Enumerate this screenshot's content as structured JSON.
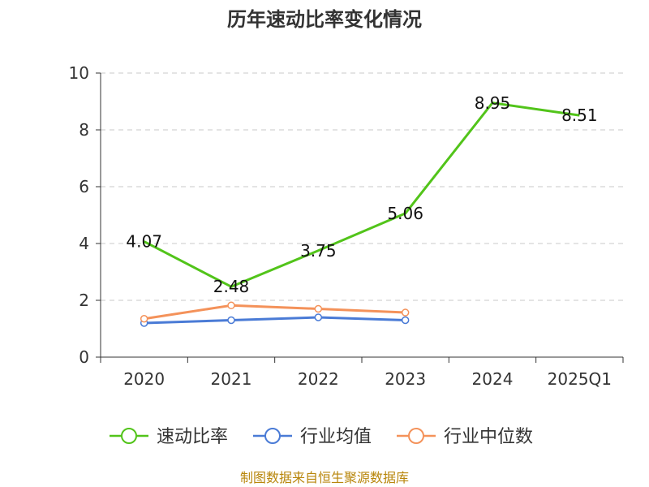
{
  "chart_data": {
    "type": "line",
    "title": "历年速动比率变化情况",
    "categories": [
      "2020",
      "2021",
      "2022",
      "2023",
      "2024",
      "2025Q1"
    ],
    "ylim": [
      0,
      10
    ],
    "yticks": [
      "0",
      "2",
      "4",
      "6",
      "8",
      "10"
    ],
    "grid": true,
    "legend_position": "bottom",
    "series": [
      {
        "name": "速动比率",
        "color": "#52c41a",
        "values": [
          4.07,
          2.48,
          3.75,
          5.06,
          8.95,
          8.51
        ],
        "labels": [
          "4.07",
          "2.48",
          "3.75",
          "5.06",
          "8.95",
          "8.51"
        ],
        "markers": false
      },
      {
        "name": "行业均值",
        "color": "#4a7bd6",
        "values": [
          1.2,
          1.3,
          1.4,
          1.3,
          null,
          null
        ],
        "markers": true
      },
      {
        "name": "行业中位数",
        "color": "#f4925a",
        "values": [
          1.35,
          1.82,
          1.7,
          1.57,
          null,
          null
        ],
        "markers": true
      }
    ]
  },
  "footer": "制图数据来自恒生聚源数据库"
}
